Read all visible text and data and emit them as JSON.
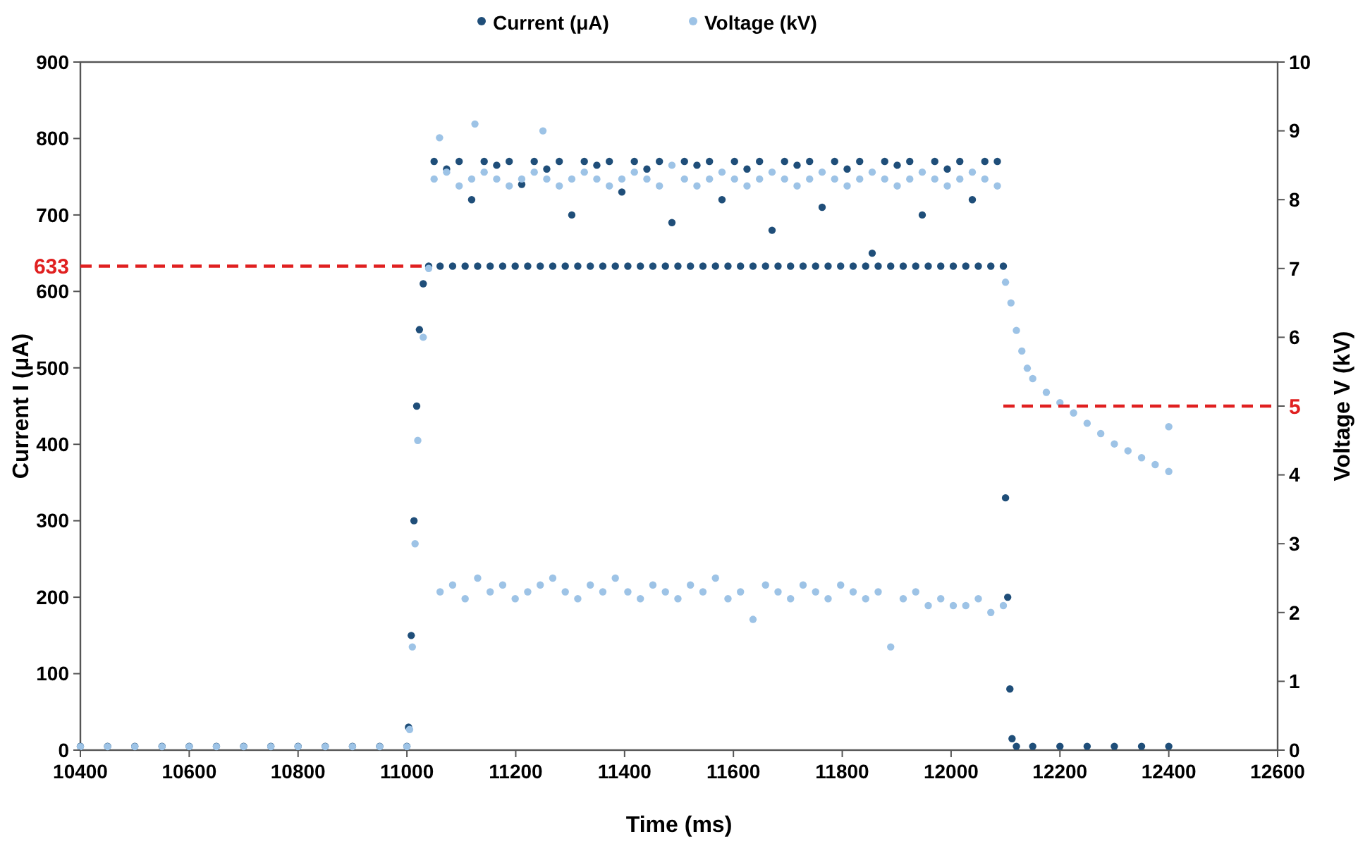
{
  "chart_data": {
    "type": "scatter",
    "xlabel": "Time (ms)",
    "ylabel": "Current I (μA)",
    "y2label": "Voltage V (kV)",
    "xlim": [
      10400,
      12600
    ],
    "xticks": [
      10400,
      10600,
      10800,
      11000,
      11200,
      11400,
      11600,
      11800,
      12000,
      12200,
      12400,
      12600
    ],
    "ylim": [
      0,
      900
    ],
    "yticks": [
      0,
      100,
      200,
      300,
      400,
      500,
      600,
      700,
      800,
      900
    ],
    "y2lim": [
      0,
      10
    ],
    "y2ticks": [
      0,
      1,
      2,
      3,
      4,
      5,
      6,
      7,
      8,
      9,
      10
    ],
    "legend": "top",
    "marker": "circle",
    "ref_lines": [
      {
        "axis": "y",
        "value": 633,
        "label": "633",
        "color": "#e02020",
        "line_style": "dashed"
      },
      {
        "axis": "y2",
        "value": 5,
        "label": "5",
        "color": "#e02020",
        "line_style": "dashed"
      }
    ],
    "series": [
      {
        "name": "Current (μA)",
        "color": "#1f4e79",
        "x": [
          10400,
          10450,
          10500,
          10550,
          10600,
          10650,
          10700,
          10750,
          10800,
          10850,
          10900,
          10950,
          11000,
          11003,
          11008,
          11013,
          11018,
          11023,
          11030,
          11040,
          11050,
          11061,
          11073,
          11084,
          11096,
          11107,
          11119,
          11130,
          11142,
          11153,
          11165,
          11176,
          11188,
          11199,
          11211,
          11222,
          11234,
          11245,
          11257,
          11268,
          11280,
          11291,
          11303,
          11314,
          11326,
          11337,
          11349,
          11360,
          11372,
          11383,
          11395,
          11406,
          11418,
          11429,
          11441,
          11452,
          11464,
          11475,
          11487,
          11498,
          11510,
          11521,
          11533,
          11544,
          11556,
          11567,
          11579,
          11590,
          11602,
          11613,
          11625,
          11636,
          11648,
          11659,
          11671,
          11682,
          11694,
          11705,
          11717,
          11728,
          11740,
          11751,
          11763,
          11774,
          11786,
          11797,
          11809,
          11820,
          11832,
          11843,
          11855,
          11866,
          11878,
          11889,
          11901,
          11912,
          11924,
          11935,
          11947,
          11958,
          11970,
          11981,
          11993,
          12004,
          12016,
          12027,
          12039,
          12050,
          12062,
          12073,
          12085,
          12096,
          12100,
          12104,
          12108,
          12112,
          12120,
          12150,
          12200,
          12250,
          12300,
          12350,
          12400
        ],
        "values": [
          5,
          5,
          5,
          5,
          5,
          5,
          5,
          5,
          5,
          5,
          5,
          5,
          5,
          30,
          150,
          300,
          450,
          550,
          610,
          633,
          770,
          633,
          760,
          633,
          770,
          633,
          720,
          633,
          770,
          633,
          765,
          633,
          770,
          633,
          740,
          633,
          770,
          633,
          760,
          633,
          770,
          633,
          700,
          633,
          770,
          633,
          765,
          633,
          770,
          633,
          730,
          633,
          770,
          633,
          760,
          633,
          770,
          633,
          690,
          633,
          770,
          633,
          765,
          633,
          770,
          633,
          720,
          633,
          770,
          633,
          760,
          633,
          770,
          633,
          680,
          633,
          770,
          633,
          765,
          633,
          770,
          633,
          710,
          633,
          770,
          633,
          760,
          633,
          770,
          633,
          650,
          633,
          770,
          633,
          765,
          633,
          770,
          633,
          700,
          633,
          770,
          633,
          760,
          633,
          770,
          633,
          720,
          633,
          770,
          633,
          770,
          633,
          330,
          200,
          80,
          15,
          5,
          5,
          5,
          5,
          5,
          5,
          5
        ]
      },
      {
        "name": "Voltage (kV)",
        "color": "#9dc3e6",
        "axis": "y2",
        "x": [
          10400,
          10450,
          10500,
          10550,
          10600,
          10650,
          10700,
          10750,
          10800,
          10850,
          10900,
          10950,
          11000,
          11005,
          11010,
          11015,
          11020,
          11030,
          11040,
          11050,
          11061,
          11073,
          11084,
          11096,
          11107,
          11119,
          11130,
          11142,
          11153,
          11165,
          11176,
          11188,
          11199,
          11211,
          11222,
          11234,
          11245,
          11257,
          11268,
          11280,
          11291,
          11303,
          11314,
          11326,
          11337,
          11349,
          11360,
          11372,
          11383,
          11395,
          11406,
          11418,
          11429,
          11441,
          11452,
          11464,
          11475,
          11487,
          11498,
          11510,
          11521,
          11533,
          11544,
          11556,
          11567,
          11579,
          11590,
          11602,
          11613,
          11625,
          11636,
          11648,
          11659,
          11671,
          11682,
          11694,
          11705,
          11717,
          11728,
          11740,
          11751,
          11763,
          11774,
          11786,
          11797,
          11809,
          11820,
          11832,
          11843,
          11855,
          11866,
          11878,
          11889,
          11901,
          11912,
          11924,
          11935,
          11947,
          11958,
          11970,
          11981,
          11993,
          12004,
          12016,
          12027,
          12039,
          12050,
          12062,
          12073,
          12085,
          12096,
          12100,
          12110,
          12120,
          12130,
          12140,
          12150,
          12175,
          12200,
          12225,
          12250,
          12275,
          12300,
          12325,
          12350,
          12375,
          12400,
          11060,
          11125,
          11250,
          12400
        ],
        "values": [
          0.05,
          0.05,
          0.05,
          0.05,
          0.05,
          0.05,
          0.05,
          0.05,
          0.05,
          0.05,
          0.05,
          0.05,
          0.05,
          0.3,
          1.5,
          3,
          4.5,
          6,
          7,
          8.3,
          2.3,
          8.4,
          2.4,
          8.2,
          2.2,
          8.3,
          2.5,
          8.4,
          2.3,
          8.3,
          2.4,
          8.2,
          2.2,
          8.3,
          2.3,
          8.4,
          2.4,
          8.3,
          2.5,
          8.2,
          2.3,
          8.3,
          2.2,
          8.4,
          2.4,
          8.3,
          2.3,
          8.2,
          2.5,
          8.3,
          2.3,
          8.4,
          2.2,
          8.3,
          2.4,
          8.2,
          2.3,
          8.5,
          2.2,
          8.3,
          2.4,
          8.2,
          2.3,
          8.3,
          2.5,
          8.4,
          2.2,
          8.3,
          2.3,
          8.2,
          1.9,
          8.3,
          2.4,
          8.4,
          2.3,
          8.3,
          2.2,
          8.2,
          2.4,
          8.3,
          2.3,
          8.4,
          2.2,
          8.3,
          2.4,
          8.2,
          2.3,
          8.3,
          2.2,
          8.4,
          2.3,
          8.3,
          1.5,
          8.2,
          2.2,
          8.3,
          2.3,
          8.4,
          2.1,
          8.3,
          2.2,
          8.2,
          2.1,
          8.3,
          2.1,
          8.4,
          2.2,
          8.3,
          2.0,
          8.2,
          2.1,
          6.8,
          6.5,
          6.1,
          5.8,
          5.55,
          5.4,
          5.2,
          5.05,
          4.9,
          4.75,
          4.6,
          4.45,
          4.35,
          4.25,
          4.15,
          4.05,
          8.9,
          9.1,
          9.0,
          4.7
        ]
      }
    ]
  }
}
